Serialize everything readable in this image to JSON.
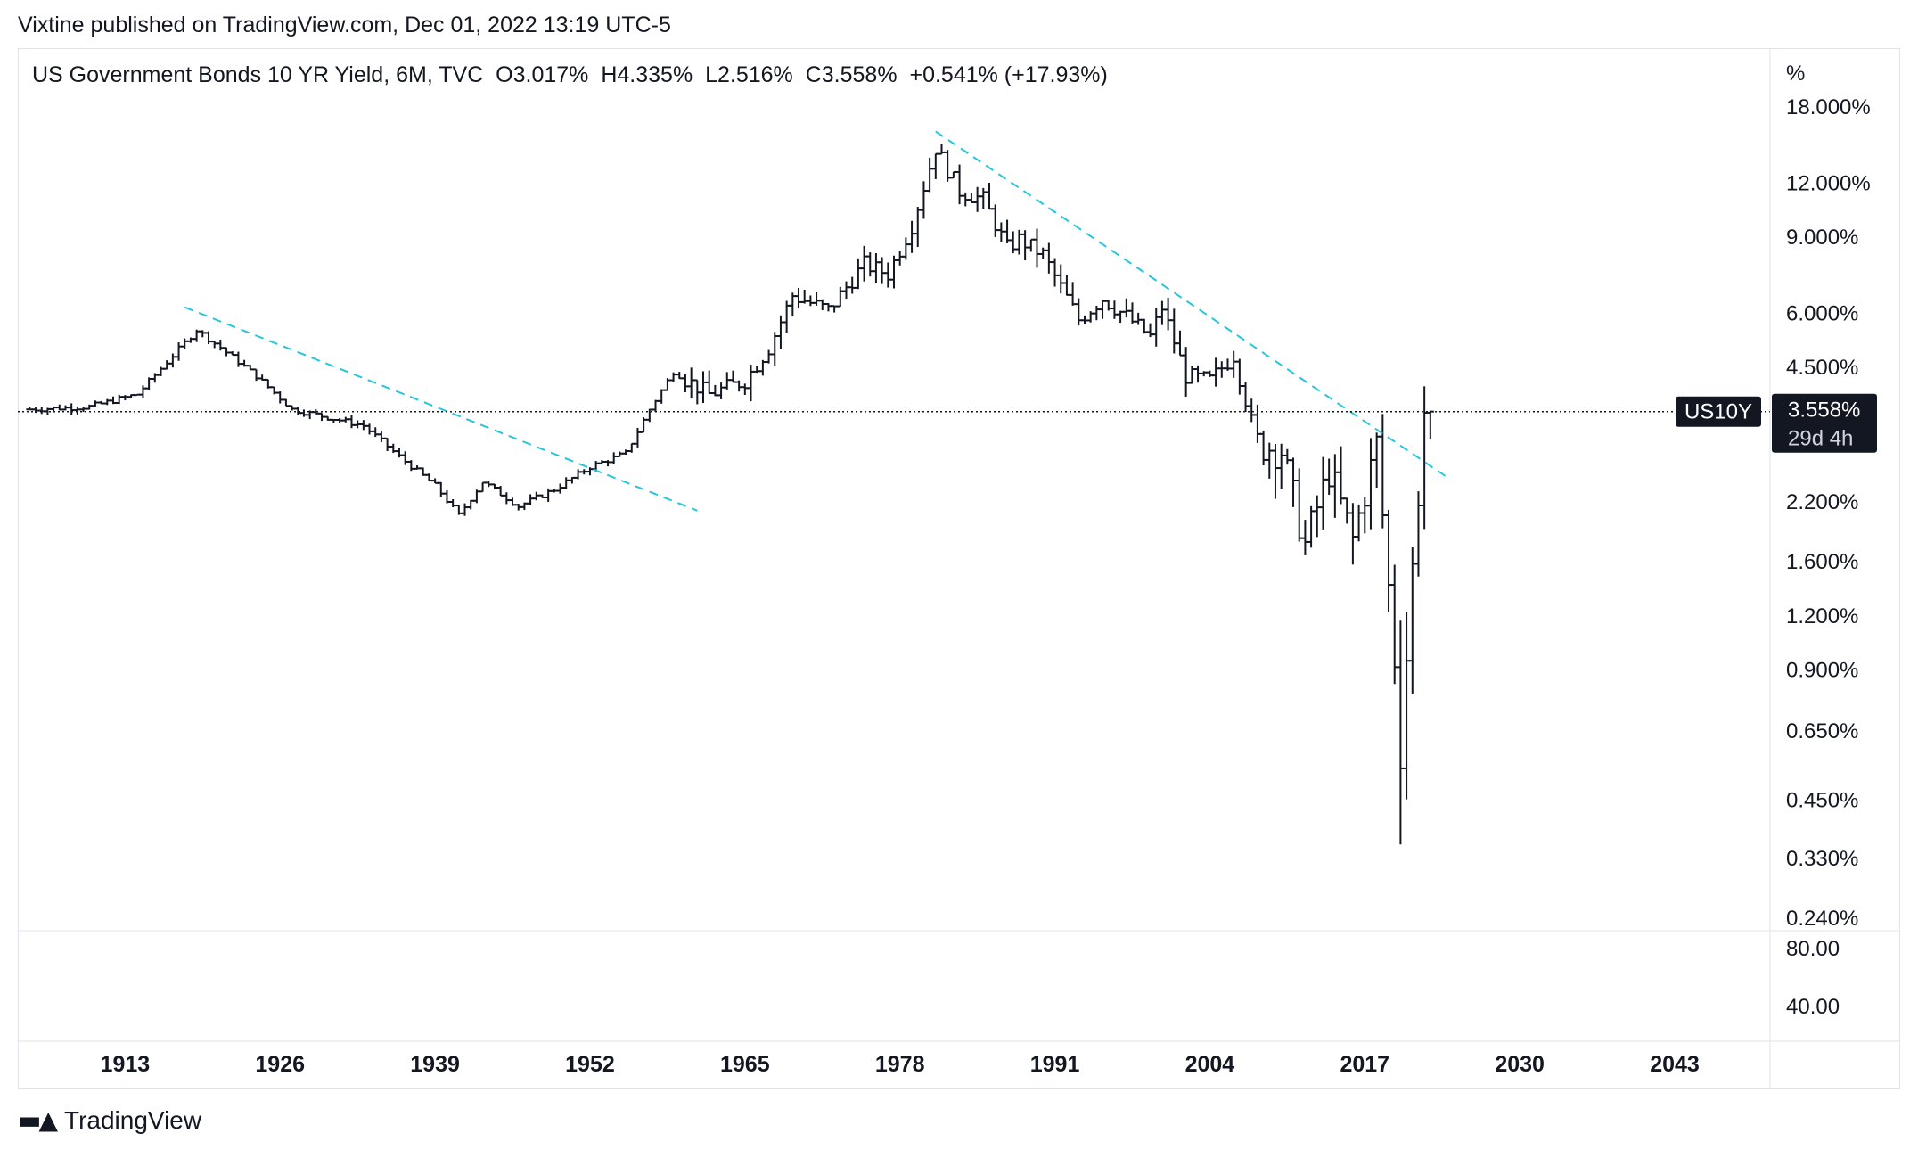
{
  "header": {
    "published": "Vixtine published on TradingView.com, Dec 01, 2022 13:19 UTC-5"
  },
  "legend": {
    "symbol": "US Government Bonds 10 YR Yield, 6M, TVC",
    "open": "O3.017%",
    "high": "H4.335%",
    "low": "L2.516%",
    "close": "C3.558%",
    "change": "+0.541% (+17.93%)"
  },
  "price_axis": {
    "unit": "%",
    "ticks": [
      "18.000%",
      "12.000%",
      "9.000%",
      "6.000%",
      "4.500%",
      "2.200%",
      "1.600%",
      "1.200%",
      "0.900%",
      "0.650%",
      "0.450%",
      "0.330%",
      "0.240%"
    ],
    "last_price_label": "3.558%",
    "countdown_label": "29d 4h",
    "symbol_tag": "US10Y"
  },
  "indicator_axis": {
    "ticks": [
      "80.00",
      "40.00"
    ]
  },
  "time_axis": {
    "ticks": [
      "1913",
      "1926",
      "1939",
      "1952",
      "1965",
      "1978",
      "1991",
      "2004",
      "2017",
      "2030",
      "2043"
    ]
  },
  "footer": {
    "brand": "TradingView"
  },
  "colors": {
    "candle": "#131722",
    "trendline": "#26c6da",
    "last_price_bg": "#131722",
    "last_price_text": "#ffffff"
  },
  "chart_data": {
    "type": "ohlc",
    "interval": "6M",
    "scale": "log",
    "ylim": [
      0.24,
      18.0
    ],
    "xlim": [
      1904,
      2051
    ],
    "last_price": 3.558,
    "series": [
      {
        "values": [
          [
            1905,
            3.6
          ],
          [
            1910,
            3.65
          ],
          [
            1914,
            3.9
          ],
          [
            1919,
            5.5
          ],
          [
            1921,
            5.0
          ],
          [
            1924,
            4.3
          ],
          [
            1927,
            3.6
          ],
          [
            1929,
            3.5
          ],
          [
            1931,
            3.4
          ],
          [
            1933,
            3.3
          ],
          [
            1936,
            2.8
          ],
          [
            1939,
            2.4
          ],
          [
            1941,
            2.05
          ],
          [
            1943,
            2.45
          ],
          [
            1946,
            2.15
          ],
          [
            1949,
            2.35
          ],
          [
            1952,
            2.65
          ],
          [
            1955,
            2.85
          ],
          [
            1957,
            3.6
          ],
          [
            1959,
            4.4
          ],
          [
            1962,
            3.9
          ],
          [
            1965,
            4.2
          ],
          [
            1967,
            5.0
          ],
          [
            1969,
            6.6
          ],
          [
            1972,
            6.1
          ],
          [
            1975,
            7.8
          ],
          [
            1977,
            7.4
          ],
          [
            1979,
            9.6
          ],
          [
            1981,
            14.5
          ],
          [
            1983,
            11.5
          ],
          [
            1985,
            11.0
          ],
          [
            1987,
            8.5
          ],
          [
            1988,
            8.9
          ],
          [
            1990,
            8.2
          ],
          [
            1993,
            5.8
          ],
          [
            1995,
            6.5
          ],
          [
            1997,
            5.9
          ],
          [
            1999,
            5.3
          ],
          [
            2000,
            6.2
          ],
          [
            2002,
            4.3
          ],
          [
            2004,
            4.2
          ],
          [
            2006,
            4.8
          ],
          [
            2008,
            3.0
          ],
          [
            2010,
            2.9
          ],
          [
            2012,
            1.75
          ],
          [
            2014,
            2.6
          ],
          [
            2016,
            1.8
          ],
          [
            2018,
            3.0
          ],
          [
            2020,
            0.65
          ],
          [
            2021,
            1.5
          ],
          [
            2022,
            3.558
          ]
        ]
      }
    ],
    "trendlines": [
      {
        "from": [
          1918,
          6.2
        ],
        "to": [
          1961,
          2.1
        ]
      },
      {
        "from": [
          1981,
          15.8
        ],
        "to": [
          2024,
          2.5
        ]
      }
    ]
  }
}
